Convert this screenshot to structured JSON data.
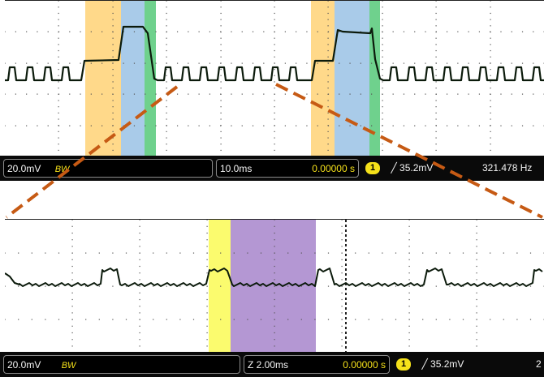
{
  "colors": {
    "orange_region": "#ffd98a",
    "blue_region": "#a9cbe9",
    "green_region": "#6fd18d",
    "yellow_region": "#fbfb6e",
    "purple_region": "#b497d3",
    "trace": "#0b1a0b",
    "zoom_line": "#c65a14",
    "status_bg": "#0a0a0a",
    "channel_yellow": "#f5e11a"
  },
  "top_screen": {
    "status": {
      "volts_div": "20.0mV",
      "bw_label": "BW",
      "time_div": "10.0ms",
      "trigger_pos": "0.00000 s",
      "channel": "1",
      "trigger_slope": "╱",
      "trigger_level": "35.2mV",
      "frequency": "321.478 Hz"
    }
  },
  "bottom_screen": {
    "status": {
      "volts_div": "20.0mV",
      "bw_label": "BW",
      "time_div": "Z 2.00ms",
      "trigger_pos": "0.00000 s",
      "channel": "1",
      "trigger_slope": "╱",
      "trigger_level": "35.2mV",
      "frequency": "2"
    }
  }
}
